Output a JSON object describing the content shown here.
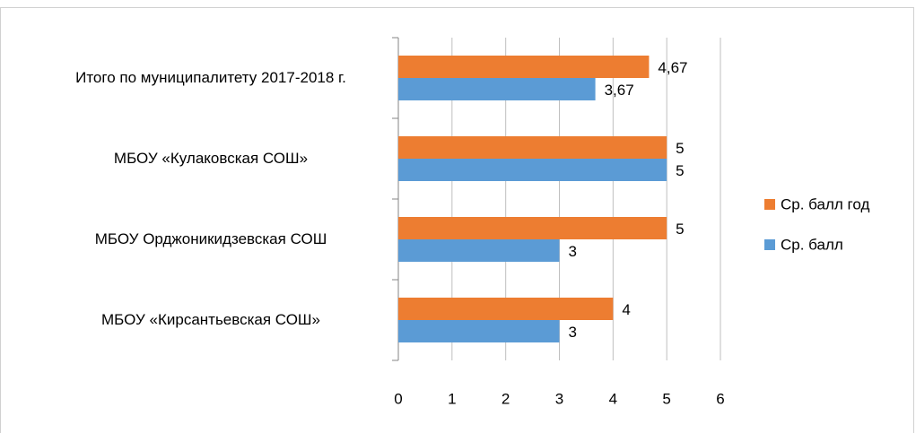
{
  "chart_data": {
    "type": "barh",
    "categories": [
      "Итого по муниципалитету 2017-2018 г.",
      "МБОУ «Кулаковская СОШ»",
      "МБОУ Орджоникидзевская СОШ",
      "МБОУ «Кирсантьевская СОШ»"
    ],
    "series": [
      {
        "name": "Ср. балл год",
        "color": "#ed7d31",
        "values": [
          4.67,
          5,
          5,
          4
        ],
        "value_labels": [
          "4,67",
          "5",
          "5",
          "4"
        ]
      },
      {
        "name": "Ср. балл",
        "color": "#5b9bd5",
        "values": [
          3.67,
          5,
          3,
          3
        ],
        "value_labels": [
          "3,67",
          "5",
          "3",
          "3"
        ]
      }
    ],
    "xlim": [
      0,
      6
    ],
    "xticks": [
      0,
      1,
      2,
      3,
      4,
      5,
      6
    ],
    "grid": true,
    "legend": "right"
  }
}
